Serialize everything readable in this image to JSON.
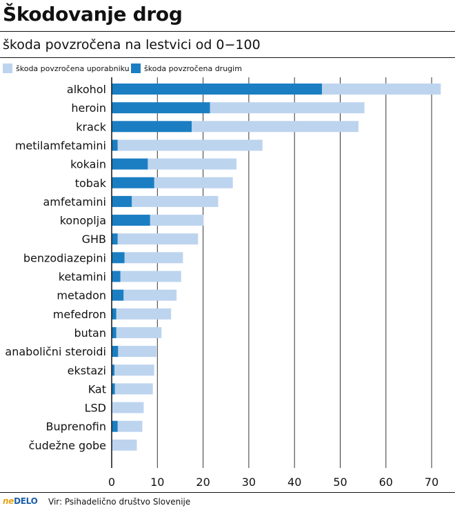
{
  "title": "Škodovanje drog",
  "subtitle": "škoda povzročena na lestvici od 0−100",
  "legend": [
    {
      "label": "škoda povzročena uporabniku",
      "color": "#bdd4ef"
    },
    {
      "label": "škoda povzročena drugim",
      "color": "#1b7ec2"
    }
  ],
  "footer": {
    "logo_part1": "ne",
    "logo_part2": "DELO",
    "source": "Vir: Psihadelično društvo Slovenije"
  },
  "chart_data": {
    "type": "bar",
    "orientation": "horizontal",
    "stacked": true,
    "xlim": [
      0,
      72
    ],
    "xticks": [
      0,
      10,
      20,
      30,
      40,
      50,
      60,
      70
    ],
    "grid": true,
    "legend_position": "top-left",
    "categories": [
      "alkohol",
      "heroin",
      "krack",
      "metilamfetamini",
      "kokain",
      "tobak",
      "amfetamini",
      "konoplja",
      "GHB",
      "benzodiazepini",
      "ketamini",
      "metadon",
      "mefedron",
      "butan",
      "anabolični steroidi",
      "ekstazi",
      "Kat",
      "LSD",
      "Buprenofin",
      "čudežne gobe"
    ],
    "series": [
      {
        "name": "škoda povzročena drugim",
        "color": "#1b7ec2",
        "values": [
          46,
          21.5,
          17.5,
          1.3,
          7.9,
          9.3,
          4.4,
          8.4,
          1.3,
          2.8,
          1.9,
          2.6,
          1,
          1,
          1.4,
          0.6,
          0.7,
          0,
          1.3,
          0
        ]
      },
      {
        "name": "škoda povzročena uporabniku",
        "color": "#bdd4ef",
        "values": [
          26,
          33.8,
          36.5,
          31.7,
          19.4,
          17.2,
          18.9,
          11.7,
          17.6,
          12.8,
          13.3,
          11.6,
          12,
          9.9,
          8.4,
          8.7,
          8.3,
          7,
          5.4,
          5.5
        ]
      }
    ]
  }
}
